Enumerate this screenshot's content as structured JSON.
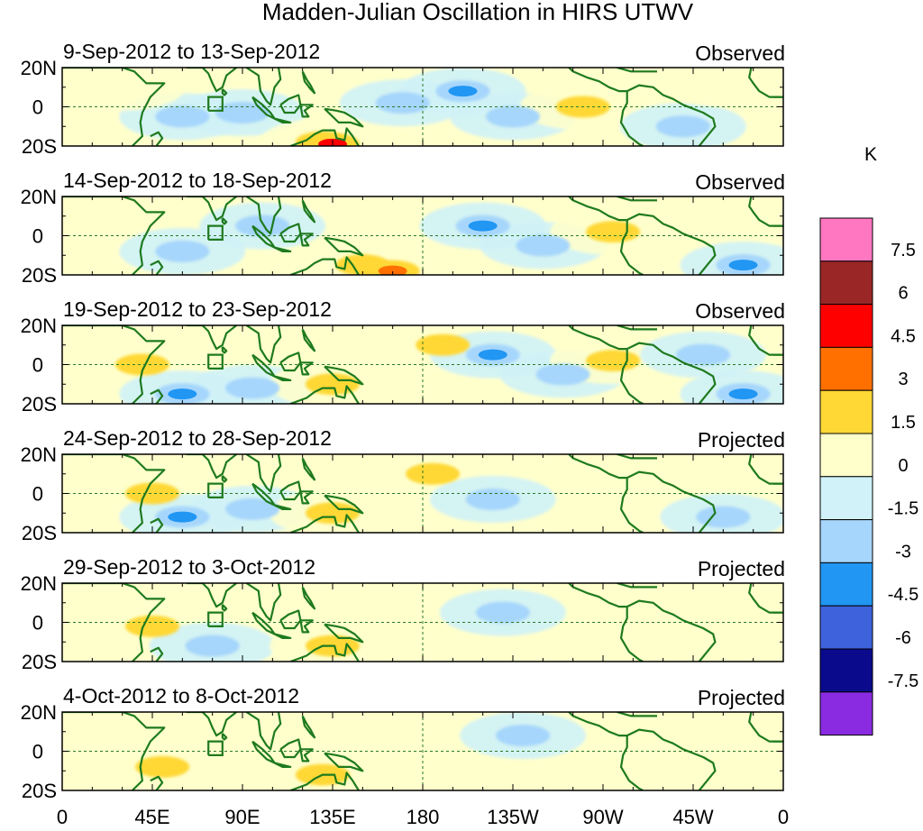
{
  "chart_data": {
    "type": "heatmap",
    "title": "Madden-Julian Oscillation in HIRS UTWV",
    "colorbar": {
      "unit": "K",
      "levels": [
        "7.5",
        "6",
        "4.5",
        "3",
        "1.5",
        "0",
        "-1.5",
        "-3",
        "-4.5",
        "-6",
        "-7.5"
      ],
      "colors": [
        "#ff77c0",
        "#9a2626",
        "#ff0000",
        "#ff7000",
        "#ffd836",
        "#ffffcc",
        "#d0f2f8",
        "#a6d6fc",
        "#2196f3",
        "#3e62dc",
        "#0a0a8c",
        "#8a2be2"
      ]
    },
    "x_axis": {
      "labels": [
        "0",
        "45E",
        "90E",
        "135E",
        "180",
        "135W",
        "90W",
        "45W",
        "0"
      ],
      "range_deg_east": [
        0,
        360
      ]
    },
    "y_axis": {
      "labels": [
        "20N",
        "0",
        "20S"
      ],
      "range_deg": [
        -20,
        20
      ]
    },
    "panels": [
      {
        "date_range": "9-Sep-2012 to 13-Sep-2012",
        "status": "Observed",
        "anomalies": [
          {
            "lon": 60,
            "lat": -5,
            "value": -2
          },
          {
            "lon": 90,
            "lat": -3,
            "value": -1.8
          },
          {
            "lon": 30,
            "lat": 10,
            "value": 1
          },
          {
            "lon": 130,
            "lat": -18,
            "value": 2.5
          },
          {
            "lon": 135,
            "lat": -19,
            "value": 4.8
          },
          {
            "lon": 170,
            "lat": 2,
            "value": -2
          },
          {
            "lon": 200,
            "lat": 8,
            "value": -3.5
          },
          {
            "lon": 225,
            "lat": -5,
            "value": -1.8
          },
          {
            "lon": 260,
            "lat": 0,
            "value": 2
          },
          {
            "lon": 310,
            "lat": -10,
            "value": -2.2
          },
          {
            "lon": 330,
            "lat": 12,
            "value": 1
          }
        ]
      },
      {
        "date_range": "14-Sep-2012 to 18-Sep-2012",
        "status": "Observed",
        "anomalies": [
          {
            "lon": 60,
            "lat": -8,
            "value": -2
          },
          {
            "lon": 100,
            "lat": 5,
            "value": -1.6
          },
          {
            "lon": 150,
            "lat": -15,
            "value": 2.4
          },
          {
            "lon": 165,
            "lat": -18,
            "value": 3
          },
          {
            "lon": 210,
            "lat": 5,
            "value": -3.5
          },
          {
            "lon": 240,
            "lat": -5,
            "value": -1.8
          },
          {
            "lon": 275,
            "lat": 2,
            "value": 2
          },
          {
            "lon": 340,
            "lat": -15,
            "value": -3.5
          },
          {
            "lon": 300,
            "lat": 10,
            "value": 1
          }
        ]
      },
      {
        "date_range": "19-Sep-2012 to 23-Sep-2012",
        "status": "Observed",
        "anomalies": [
          {
            "lon": 40,
            "lat": 0,
            "value": 2
          },
          {
            "lon": 60,
            "lat": -15,
            "value": -3.2
          },
          {
            "lon": 95,
            "lat": -12,
            "value": -2
          },
          {
            "lon": 135,
            "lat": -10,
            "value": 2
          },
          {
            "lon": 190,
            "lat": 10,
            "value": 1.8
          },
          {
            "lon": 215,
            "lat": 5,
            "value": -3.5
          },
          {
            "lon": 250,
            "lat": -5,
            "value": -1.8
          },
          {
            "lon": 275,
            "lat": 2,
            "value": 2
          },
          {
            "lon": 340,
            "lat": -15,
            "value": -3.5
          },
          {
            "lon": 320,
            "lat": 5,
            "value": -1.6
          }
        ]
      },
      {
        "date_range": "24-Sep-2012 to 28-Sep-2012",
        "status": "Projected",
        "anomalies": [
          {
            "lon": 45,
            "lat": 0,
            "value": 2
          },
          {
            "lon": 60,
            "lat": -12,
            "value": -3.2
          },
          {
            "lon": 95,
            "lat": -8,
            "value": -1.8
          },
          {
            "lon": 135,
            "lat": -10,
            "value": 2
          },
          {
            "lon": 185,
            "lat": 10,
            "value": 1.8
          },
          {
            "lon": 215,
            "lat": -3,
            "value": -1.6
          },
          {
            "lon": 290,
            "lat": 5,
            "value": 1
          },
          {
            "lon": 330,
            "lat": -12,
            "value": -1.6
          }
        ]
      },
      {
        "date_range": "29-Sep-2012 to 3-Oct-2012",
        "status": "Projected",
        "anomalies": [
          {
            "lon": 45,
            "lat": -2,
            "value": 2
          },
          {
            "lon": 75,
            "lat": -12,
            "value": -1.8
          },
          {
            "lon": 135,
            "lat": -12,
            "value": 2
          },
          {
            "lon": 220,
            "lat": 5,
            "value": -1.6
          },
          {
            "lon": 300,
            "lat": 5,
            "value": 1
          },
          {
            "lon": 25,
            "lat": 10,
            "value": 1
          }
        ]
      },
      {
        "date_range": "4-Oct-2012 to 8-Oct-2012",
        "status": "Projected",
        "anomalies": [
          {
            "lon": 50,
            "lat": -8,
            "value": 2
          },
          {
            "lon": 130,
            "lat": -12,
            "value": 2
          },
          {
            "lon": 175,
            "lat": 8,
            "value": 1
          },
          {
            "lon": 230,
            "lat": 8,
            "value": -1.6
          },
          {
            "lon": 300,
            "lat": -5,
            "value": 1
          },
          {
            "lon": 20,
            "lat": 12,
            "value": 1
          }
        ]
      }
    ]
  }
}
